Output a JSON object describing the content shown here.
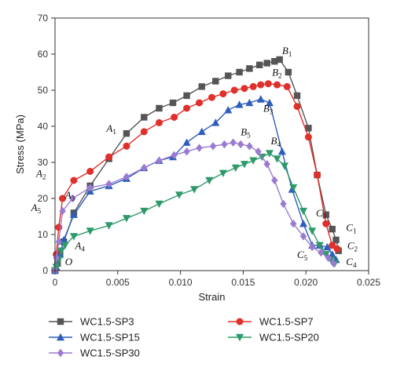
{
  "chart_data": {
    "type": "line",
    "title": "",
    "xlabel": "Strain",
    "ylabel": "Stress (MPa)",
    "xlim": [
      0,
      0.025
    ],
    "ylim": [
      0,
      70
    ],
    "xticks": [
      0,
      0.005,
      0.01,
      0.015,
      0.02,
      0.025
    ],
    "xtick_labels": [
      "0",
      "0.005",
      "0.010",
      "0.015",
      "0.020",
      "0.025"
    ],
    "yticks": [
      0,
      10,
      20,
      30,
      40,
      50,
      60,
      70
    ],
    "ytick_labels": [
      "0",
      "10",
      "20",
      "30",
      "40",
      "50",
      "60",
      "70"
    ],
    "grid": false,
    "legend_position": "bottom",
    "series": [
      {
        "name": "WC1.5-SP3",
        "color": "#555555",
        "marker": "square",
        "points": [
          [
            0,
            0
          ],
          [
            0.0002,
            2
          ],
          [
            0.0004,
            5
          ],
          [
            0.0007,
            8
          ],
          [
            0.0015,
            16
          ],
          [
            0.0028,
            23.5
          ],
          [
            0.0043,
            31
          ],
          [
            0.0057,
            38
          ],
          [
            0.0071,
            42.5
          ],
          [
            0.0083,
            45
          ],
          [
            0.0094,
            46.5
          ],
          [
            0.0105,
            48.5
          ],
          [
            0.0117,
            51
          ],
          [
            0.0128,
            52.5
          ],
          [
            0.0138,
            54
          ],
          [
            0.0147,
            55
          ],
          [
            0.0155,
            56
          ],
          [
            0.0163,
            57
          ],
          [
            0.0169,
            57.5
          ],
          [
            0.0175,
            58
          ],
          [
            0.0179,
            58.5
          ],
          [
            0.0186,
            55
          ],
          [
            0.0193,
            48.5
          ],
          [
            0.0202,
            39.5
          ],
          [
            0.0209,
            26.5
          ],
          [
            0.0216,
            15.5
          ],
          [
            0.0221,
            11.5
          ],
          [
            0.0224,
            8.5
          ],
          [
            0.0226,
            5.5
          ]
        ]
      },
      {
        "name": "WC1.5-SP7",
        "color": "#e0302b",
        "marker": "circle",
        "points": [
          [
            0,
            0
          ],
          [
            0.0001,
            4.5
          ],
          [
            0.0003,
            12
          ],
          [
            0.0006,
            20
          ],
          [
            0.0015,
            25
          ],
          [
            0.0028,
            27.5
          ],
          [
            0.0043,
            31.5
          ],
          [
            0.0057,
            34.5
          ],
          [
            0.0071,
            38.5
          ],
          [
            0.0083,
            41
          ],
          [
            0.0095,
            42.5
          ],
          [
            0.0105,
            45
          ],
          [
            0.0115,
            46.5
          ],
          [
            0.0125,
            48
          ],
          [
            0.0134,
            49
          ],
          [
            0.0143,
            50
          ],
          [
            0.0151,
            50.5
          ],
          [
            0.0158,
            51
          ],
          [
            0.0164,
            51.5
          ],
          [
            0.017,
            51.8
          ],
          [
            0.0177,
            51.5
          ],
          [
            0.0185,
            51
          ],
          [
            0.0193,
            45.5
          ],
          [
            0.0202,
            37
          ],
          [
            0.0209,
            26.5
          ],
          [
            0.0216,
            13
          ],
          [
            0.0221,
            7
          ],
          [
            0.0225,
            6
          ]
        ]
      },
      {
        "name": "WC1.5-SP15",
        "color": "#2e5dbb",
        "marker": "triangle-up",
        "points": [
          [
            0,
            0
          ],
          [
            0.0001,
            1
          ],
          [
            0.0004,
            4.5
          ],
          [
            0.0007,
            8.5
          ],
          [
            0.0015,
            15.5
          ],
          [
            0.0028,
            22
          ],
          [
            0.0043,
            23.5
          ],
          [
            0.0057,
            25.5
          ],
          [
            0.0071,
            28.5
          ],
          [
            0.0083,
            30.5
          ],
          [
            0.0094,
            31.5
          ],
          [
            0.0105,
            35.5
          ],
          [
            0.0117,
            38.5
          ],
          [
            0.0128,
            41
          ],
          [
            0.0138,
            44.5
          ],
          [
            0.0147,
            46
          ],
          [
            0.0155,
            46.5
          ],
          [
            0.0164,
            47.5
          ],
          [
            0.0171,
            46.5
          ],
          [
            0.0181,
            33
          ],
          [
            0.0189,
            22.5
          ],
          [
            0.0198,
            13
          ],
          [
            0.0205,
            7
          ],
          [
            0.0211,
            7
          ],
          [
            0.0217,
            6.5
          ],
          [
            0.0221,
            4.5
          ],
          [
            0.0224,
            3
          ]
        ]
      },
      {
        "name": "WC1.5-SP20",
        "color": "#2e9a6a",
        "marker": "triangle-down",
        "points": [
          [
            0,
            0
          ],
          [
            0.0001,
            1
          ],
          [
            0.0003,
            3
          ],
          [
            0.0005,
            5.5
          ],
          [
            0.0008,
            7
          ],
          [
            0.0015,
            9.5
          ],
          [
            0.0028,
            11
          ],
          [
            0.0043,
            12.5
          ],
          [
            0.0057,
            14.5
          ],
          [
            0.0071,
            16.5
          ],
          [
            0.0083,
            18.5
          ],
          [
            0.0099,
            21
          ],
          [
            0.0111,
            22.5
          ],
          [
            0.0123,
            25
          ],
          [
            0.0134,
            27
          ],
          [
            0.0144,
            28.5
          ],
          [
            0.0151,
            29.5
          ],
          [
            0.0158,
            30.5
          ],
          [
            0.0165,
            31.5
          ],
          [
            0.0171,
            32.5
          ],
          [
            0.0177,
            31
          ],
          [
            0.0183,
            29
          ],
          [
            0.019,
            23
          ],
          [
            0.0198,
            16.5
          ],
          [
            0.0205,
            11
          ],
          [
            0.0211,
            7
          ],
          [
            0.0216,
            4.5
          ],
          [
            0.022,
            3
          ],
          [
            0.0223,
            2
          ]
        ]
      },
      {
        "name": "WC1.5-SP30",
        "color": "#9b7bd0",
        "marker": "diamond",
        "points": [
          [
            0,
            0
          ],
          [
            0.0001,
            3.5
          ],
          [
            0.0003,
            8
          ],
          [
            0.0006,
            16.5
          ],
          [
            0.0014,
            20
          ],
          [
            0.0028,
            23
          ],
          [
            0.0043,
            24
          ],
          [
            0.0057,
            26
          ],
          [
            0.0071,
            28.5
          ],
          [
            0.0083,
            30.5
          ],
          [
            0.0095,
            32
          ],
          [
            0.0105,
            33
          ],
          [
            0.0115,
            34
          ],
          [
            0.0126,
            34.5
          ],
          [
            0.0135,
            35
          ],
          [
            0.0142,
            35.5
          ],
          [
            0.0148,
            35
          ],
          [
            0.0155,
            34.5
          ],
          [
            0.0162,
            33
          ],
          [
            0.0169,
            29.5
          ],
          [
            0.0175,
            25
          ],
          [
            0.0182,
            18.5
          ],
          [
            0.019,
            13
          ],
          [
            0.0198,
            9.5
          ],
          [
            0.0205,
            6.5
          ],
          [
            0.0212,
            5
          ],
          [
            0.0218,
            3.5
          ],
          [
            0.0222,
            2
          ]
        ]
      }
    ],
    "annotations": [
      {
        "base": "O",
        "sub": "",
        "x": 0.0008,
        "y": 1.5
      },
      {
        "base": "A",
        "sub": "1",
        "x": 0.0041,
        "y": 38.5
      },
      {
        "base": "A",
        "sub": "2",
        "x": -0.0015,
        "y": 26
      },
      {
        "base": "A",
        "sub": "3",
        "x": 0.0008,
        "y": 20
      },
      {
        "base": "A",
        "sub": "4",
        "x": 0.0016,
        "y": 6
      },
      {
        "base": "A",
        "sub": "5",
        "x": -0.0019,
        "y": 16.5
      },
      {
        "base": "B",
        "sub": "1",
        "x": 0.0181,
        "y": 60
      },
      {
        "base": "B",
        "sub": "2",
        "x": 0.0173,
        "y": 54
      },
      {
        "base": "B",
        "sub": "3",
        "x": 0.0166,
        "y": 44
      },
      {
        "base": "B",
        "sub": "4",
        "x": 0.0172,
        "y": 35
      },
      {
        "base": "B",
        "sub": "5",
        "x": 0.0148,
        "y": 37.5
      },
      {
        "base": "C",
        "sub": "1",
        "x": 0.0232,
        "y": 11
      },
      {
        "base": "C",
        "sub": "2",
        "x": 0.0233,
        "y": 6
      },
      {
        "base": "C",
        "sub": "3",
        "x": 0.0208,
        "y": 15
      },
      {
        "base": "C",
        "sub": "4",
        "x": 0.0232,
        "y": 1.5
      },
      {
        "base": "C",
        "sub": "5",
        "x": 0.0193,
        "y": 3.5
      }
    ]
  }
}
